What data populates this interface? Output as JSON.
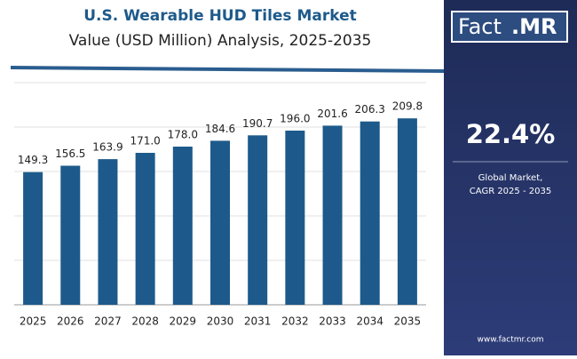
{
  "chart_data": {
    "type": "bar",
    "title": "U.S. Wearable HUD Tiles Market",
    "subtitle": "Value (USD Million) Analysis, 2025-2035",
    "categories": [
      "2025",
      "2026",
      "2027",
      "2028",
      "2029",
      "2030",
      "2031",
      "2032",
      "2033",
      "2034",
      "2035"
    ],
    "values": [
      149.3,
      156.5,
      163.9,
      171.0,
      178.0,
      184.6,
      190.7,
      196.0,
      201.6,
      206.3,
      209.8
    ],
    "value_labels": [
      "149.3",
      "156.5",
      "163.9",
      "171.0",
      "178.0",
      "184.6",
      "190.7",
      "196.0",
      "201.6",
      "206.3",
      "209.8"
    ],
    "color": "#1d5a8b",
    "ylim": [
      0,
      250
    ],
    "yticks": [
      0,
      50,
      100,
      150,
      200,
      250
    ],
    "grid": true
  },
  "sidebar": {
    "logo_main": "Fact",
    "logo_accent": ".MR",
    "cagr": "22.4%",
    "cagr_caption": [
      "Global Market,",
      "CAGR 2025 - 2035"
    ],
    "website": "www.factmr.com"
  }
}
